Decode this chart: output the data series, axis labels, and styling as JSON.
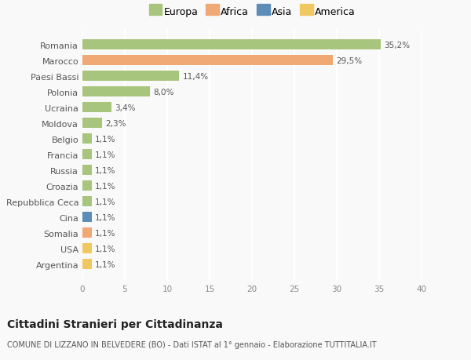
{
  "countries": [
    "Romania",
    "Marocco",
    "Paesi Bassi",
    "Polonia",
    "Ucraina",
    "Moldova",
    "Belgio",
    "Francia",
    "Russia",
    "Croazia",
    "Repubblica Ceca",
    "Cina",
    "Somalia",
    "USA",
    "Argentina"
  ],
  "values": [
    35.2,
    29.5,
    11.4,
    8.0,
    3.4,
    2.3,
    1.1,
    1.1,
    1.1,
    1.1,
    1.1,
    1.1,
    1.1,
    1.1,
    1.1
  ],
  "labels": [
    "35,2%",
    "29,5%",
    "11,4%",
    "8,0%",
    "3,4%",
    "2,3%",
    "1,1%",
    "1,1%",
    "1,1%",
    "1,1%",
    "1,1%",
    "1,1%",
    "1,1%",
    "1,1%",
    "1,1%"
  ],
  "continent": [
    "Europa",
    "Africa",
    "Europa",
    "Europa",
    "Europa",
    "Europa",
    "Europa",
    "Europa",
    "Europa",
    "Europa",
    "Europa",
    "Asia",
    "Africa",
    "America",
    "America"
  ],
  "colors": {
    "Europa": "#a8c57e",
    "Africa": "#f0a875",
    "Asia": "#5b8db8",
    "America": "#f0c860"
  },
  "title": "Cittadini Stranieri per Cittadinanza",
  "subtitle": "COMUNE DI LIZZANO IN BELVEDERE (BO) - Dati ISTAT al 1° gennaio - Elaborazione TUTTITALIA.IT",
  "xlim": [
    0,
    40
  ],
  "xticks": [
    0,
    5,
    10,
    15,
    20,
    25,
    30,
    35,
    40
  ],
  "background_color": "#f9f9f9",
  "grid_color": "#e8e8e8"
}
